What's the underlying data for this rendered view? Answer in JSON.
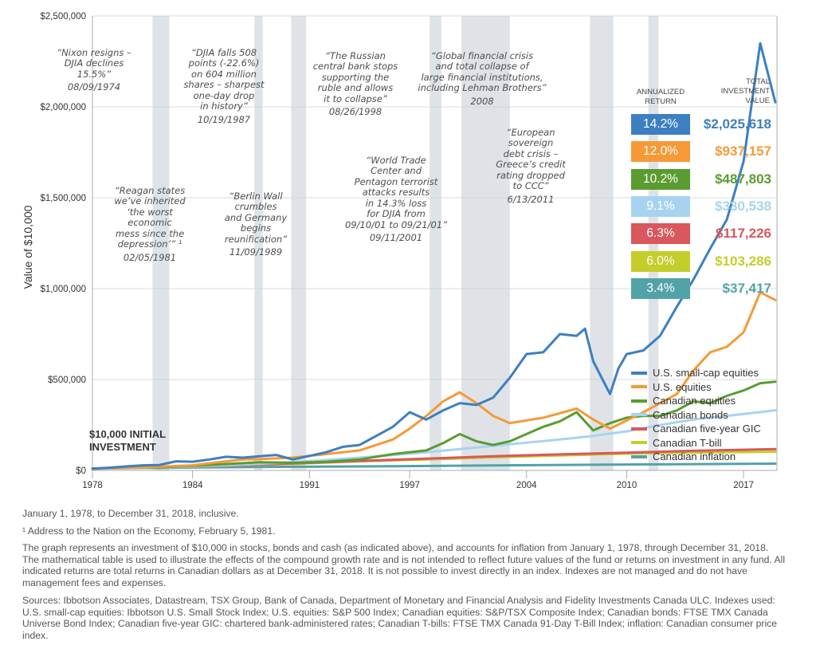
{
  "chart_data": {
    "type": "line",
    "ylabel": "Value of $10,000",
    "ylim": [
      0,
      2500000
    ],
    "xlim": [
      1978,
      2019
    ],
    "y_ticks": [
      {
        "v": 0,
        "label": "$0"
      },
      {
        "v": 500000,
        "label": "$500,000"
      },
      {
        "v": 1000000,
        "label": "$1,000,000"
      },
      {
        "v": 1500000,
        "label": "$1,500,000"
      },
      {
        "v": 2000000,
        "label": "$2,000,000"
      },
      {
        "v": 2500000,
        "label": "$2,500,000"
      }
    ],
    "x_ticks": [
      {
        "v": 1978,
        "label": "1978"
      },
      {
        "v": 1984,
        "label": "1984"
      },
      {
        "v": 1991,
        "label": "1991"
      },
      {
        "v": 1997,
        "label": "1997"
      },
      {
        "v": 2004,
        "label": "2004"
      },
      {
        "v": 2010,
        "label": "2010"
      },
      {
        "v": 2017,
        "label": "2017"
      }
    ],
    "grid": "horizontal",
    "shaded_periods": [
      [
        1981.6,
        1982.6
      ],
      [
        1987.7,
        1988.2
      ],
      [
        1989.9,
        1990.8
      ],
      [
        1998.2,
        1998.9
      ],
      [
        2000.1,
        2003.0
      ],
      [
        2007.8,
        2009.2
      ],
      [
        2011.3,
        2011.9
      ]
    ],
    "series": [
      {
        "name": "U.S. small-cap equities",
        "color": "#3d7fc1",
        "x": [
          1978,
          1979,
          1980,
          1981,
          1982,
          1983,
          1984,
          1985,
          1986,
          1987,
          1988,
          1989,
          1990,
          1991,
          1992,
          1993,
          1994,
          1995,
          1996,
          1997,
          1998,
          1999,
          2000,
          2001,
          2002,
          2003,
          2004,
          2005,
          2006,
          2007,
          2007.5,
          2008,
          2009,
          2009.5,
          2010,
          2011,
          2012,
          2013,
          2014,
          2015,
          2016,
          2017,
          2018,
          2018.9
        ],
        "y": [
          10000,
          15000,
          22000,
          28000,
          30000,
          50000,
          48000,
          60000,
          75000,
          70000,
          78000,
          85000,
          60000,
          80000,
          100000,
          130000,
          140000,
          190000,
          240000,
          320000,
          280000,
          330000,
          370000,
          360000,
          400000,
          510000,
          640000,
          650000,
          750000,
          740000,
          780000,
          600000,
          420000,
          560000,
          640000,
          660000,
          740000,
          900000,
          1050000,
          1220000,
          1380000,
          1700000,
          2350000,
          2025618
        ]
      },
      {
        "name": "U.S. equities",
        "color": "#f59a37",
        "x": [
          1978,
          1980,
          1982,
          1984,
          1986,
          1987,
          1988,
          1990,
          1992,
          1994,
          1996,
          1997,
          1998,
          1999,
          2000,
          2001,
          2002,
          2003,
          2005,
          2007,
          2008,
          2009,
          2011,
          2013,
          2014,
          2015,
          2016,
          2017,
          2018,
          2018.9
        ],
        "y": [
          10000,
          14000,
          20000,
          28000,
          50000,
          60000,
          62000,
          70000,
          90000,
          110000,
          170000,
          230000,
          300000,
          380000,
          430000,
          370000,
          300000,
          260000,
          290000,
          340000,
          280000,
          230000,
          320000,
          420000,
          550000,
          650000,
          680000,
          760000,
          980000,
          937157
        ]
      },
      {
        "name": "Canadian equities",
        "color": "#5a9c30",
        "x": [
          1978,
          1980,
          1982,
          1984,
          1986,
          1988,
          1990,
          1992,
          1994,
          1996,
          1998,
          1999,
          2000,
          2001,
          2002,
          2003,
          2004,
          2005,
          2006,
          2007,
          2008,
          2009,
          2010,
          2011,
          2012,
          2013,
          2014,
          2015,
          2016,
          2017,
          2018,
          2018.9
        ],
        "y": [
          10000,
          17000,
          16000,
          25000,
          35000,
          45000,
          42000,
          48000,
          60000,
          90000,
          110000,
          150000,
          200000,
          160000,
          140000,
          160000,
          200000,
          240000,
          270000,
          320000,
          220000,
          260000,
          290000,
          300000,
          300000,
          330000,
          380000,
          370000,
          410000,
          440000,
          480000,
          487803
        ]
      },
      {
        "name": "Canadian bonds",
        "color": "#a7d3f0",
        "x": [
          1978,
          1982,
          1986,
          1990,
          1994,
          1998,
          2002,
          2006,
          2008,
          2010,
          2012,
          2014,
          2016,
          2018.9
        ],
        "y": [
          10000,
          15000,
          28000,
          45000,
          70000,
          100000,
          135000,
          170000,
          190000,
          215000,
          250000,
          280000,
          300000,
          330538
        ]
      },
      {
        "name": "Canadian five-year GIC",
        "color": "#d9575d",
        "x": [
          1978,
          1982,
          1986,
          1990,
          1994,
          1998,
          2002,
          2006,
          2010,
          2014,
          2018.9
        ],
        "y": [
          10000,
          16000,
          25000,
          38000,
          52000,
          65000,
          78000,
          88000,
          98000,
          108000,
          117226
        ]
      },
      {
        "name": "Canadian T-bill",
        "color": "#c5cd2a",
        "x": [
          1978,
          1982,
          1986,
          1990,
          1994,
          1998,
          2002,
          2006,
          2010,
          2014,
          2018.9
        ],
        "y": [
          10000,
          16000,
          25000,
          36000,
          50000,
          60000,
          72000,
          82000,
          92000,
          98000,
          103286
        ]
      },
      {
        "name": "Canadian inflation",
        "color": "#52a3a8",
        "x": [
          1978,
          1984,
          1990,
          1996,
          2002,
          2008,
          2014,
          2018.9
        ],
        "y": [
          10000,
          16000,
          20000,
          23000,
          27000,
          31000,
          34500,
          37417
        ]
      }
    ]
  },
  "initial_label": "$10,000 INITIAL\nINVESTMENT",
  "returns_table": {
    "header_return": "ANNUALIZED\nRETURN",
    "header_value": "TOTAL\nINVESTMENT\nVALUE",
    "rows": [
      {
        "ret": "14.2%",
        "value": "$2,025,618",
        "color": "#3d7fc1"
      },
      {
        "ret": "12.0%",
        "value": "$937,157",
        "color": "#f59a37"
      },
      {
        "ret": "10.2%",
        "value": "$487,803",
        "color": "#5a9c30"
      },
      {
        "ret": "9.1%",
        "value": "$330,538",
        "color": "#a7d3f0"
      },
      {
        "ret": "6.3%",
        "value": "$117,226",
        "color": "#d9575d"
      },
      {
        "ret": "6.0%",
        "value": "$103,286",
        "color": "#c5cd2a"
      },
      {
        "ret": "3.4%",
        "value": "$37,417",
        "color": "#52a3a8"
      }
    ]
  },
  "annotations": [
    {
      "text": "“Nixon resigns –\nDJIA declines\n15.5%”",
      "date": "08/09/1974"
    },
    {
      "text": "“Reagan states\nwe’ve inherited\n‘the worst\neconomic\nmess since the\ndepression’” ¹",
      "date": "02/05/1981"
    },
    {
      "text": "“DJIA falls 508\npoints (-22.6%)\non 604 million\nshares – sharpest\none-day drop\nin history”",
      "date": "10/19/1987"
    },
    {
      "text": "“Berlin Wall\ncrumbles\nand Germany\nbegins\nreunification”",
      "date": "11/09/1989"
    },
    {
      "text": "“The Russian\ncentral bank stops\nsupporting the\nruble and allows\nit to collapse”",
      "date": "08/26/1998"
    },
    {
      "text": "“World Trade\nCenter and\nPentagon terrorist\nattacks results\nin 14.3% loss\nfor DJIA from\n09/10/01 to 09/21/01”",
      "date": "09/11/2001"
    },
    {
      "text": "“Global financial crisis\nand total collapse of\nlarge financial institutions,\nincluding Lehman Brothers”",
      "date": "2008"
    },
    {
      "text": "“European\nsovereign\ndebt crisis –\nGreece’s credit\nrating dropped\nto CCC”",
      "date": "6/13/2011"
    }
  ],
  "footnotes": {
    "period": "January 1, 1978, to December 31, 2018, inclusive.",
    "note1": "¹ Address to the Nation on the Economy, February 5, 1981.",
    "disclaimer": "The graph represents an investment of $10,000 in stocks, bonds and cash (as indicated above), and accounts for inflation from January 1, 1978, through December 31, 2018. The mathematical table is used to illustrate the effects of the compound growth rate and is not intended to reflect future values of the fund or returns on investment in any fund. All indicated returns are total returns in Canadian dollars as at December 31, 2018. It is not possible to invest directly in an index. Indexes are not managed and do not have management fees and expenses.",
    "sources": "Sources: Ibbotson Associates, Datastream, TSX Group, Bank of Canada, Department of Monetary and Financial Analysis and Fidelity Investments Canada ULC. Indexes used: U.S. small-cap equities: Ibbotson U.S. Small Stock Index; U.S. equities: S&P 500 Index; Canadian equities: S&P/TSX Composite Index; Canadian bonds: FTSE TMX Canada Universe Bond Index; Canadian five-year GIC: chartered bank-administered rates; Canadian T-bills: FTSE TMX Canada 91-Day T-Bill Index; inflation: Canadian consumer price index."
  }
}
